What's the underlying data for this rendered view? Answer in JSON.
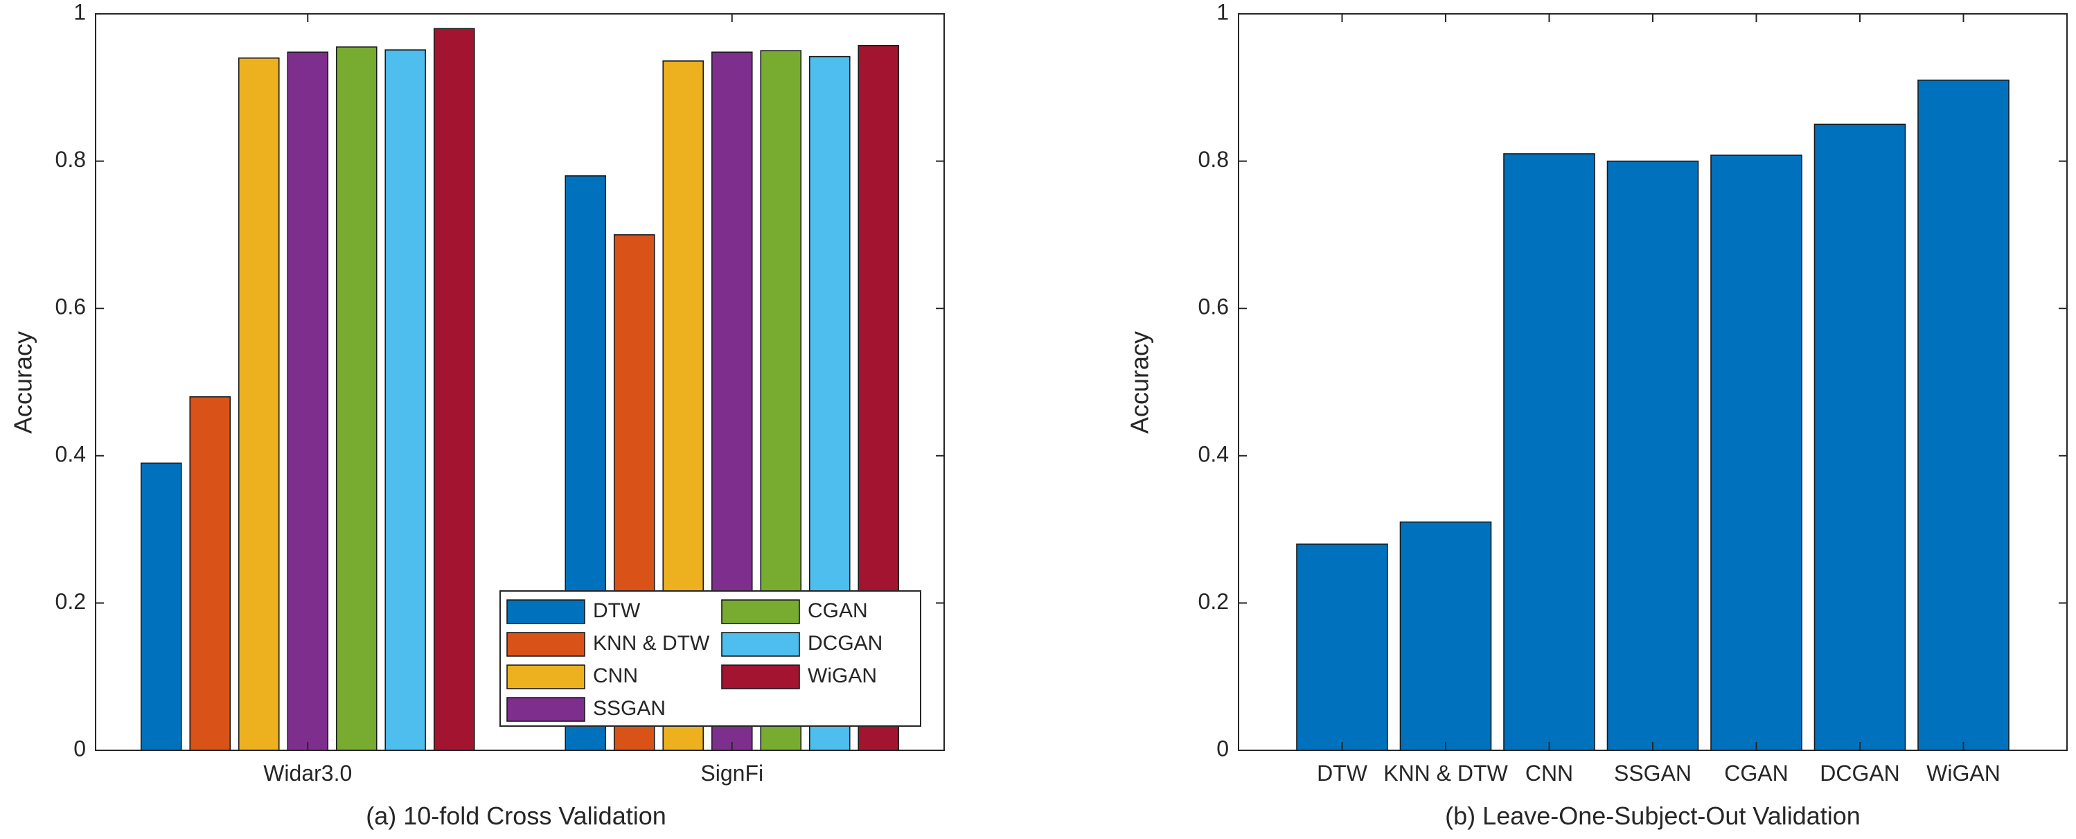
{
  "chart_data": [
    {
      "type": "bar",
      "caption": "(a) 10-fold Cross Validation",
      "categories": [
        "Widar3.0",
        "SignFi"
      ],
      "series": [
        {
          "name": "DTW",
          "color": "#0072BD",
          "values": [
            0.39,
            0.78
          ]
        },
        {
          "name": "KNN & DTW",
          "color": "#D95319",
          "values": [
            0.48,
            0.7
          ]
        },
        {
          "name": "CNN",
          "color": "#EDB120",
          "values": [
            0.94,
            0.936
          ]
        },
        {
          "name": "SSGAN",
          "color": "#7E2F8E",
          "values": [
            0.948,
            0.948
          ]
        },
        {
          "name": "CGAN",
          "color": "#77AC30",
          "values": [
            0.955,
            0.95
          ]
        },
        {
          "name": "DCGAN",
          "color": "#4DBEEE",
          "values": [
            0.951,
            0.942
          ]
        },
        {
          "name": "WiGAN",
          "color": "#A2142F",
          "values": [
            0.98,
            0.957
          ]
        }
      ],
      "xlabel": "",
      "ylabel": "Accuracy",
      "ylim": [
        0,
        1
      ],
      "yticks": [
        0,
        0.2,
        0.4,
        0.6,
        0.8,
        1
      ],
      "ytick_labels": [
        "0",
        "0.2",
        "0.4",
        "0.6",
        "0.8",
        "1"
      ],
      "grid": false,
      "legend": {
        "placement": "bottom-right",
        "columns": 2
      }
    },
    {
      "type": "bar",
      "caption": "(b) Leave-One-Subject-Out Validation",
      "categories": [
        "DTW",
        "KNN & DTW",
        "CNN",
        "SSGAN",
        "CGAN",
        "DCGAN",
        "WiGAN"
      ],
      "values": [
        0.28,
        0.31,
        0.81,
        0.8,
        0.808,
        0.85,
        0.91
      ],
      "color": "#0072BD",
      "xlabel": "",
      "ylabel": "Accuracy",
      "ylim": [
        0,
        1
      ],
      "yticks": [
        0,
        0.2,
        0.4,
        0.6,
        0.8,
        1
      ],
      "ytick_labels": [
        "0",
        "0.2",
        "0.4",
        "0.6",
        "0.8",
        "1"
      ],
      "grid": false
    }
  ]
}
